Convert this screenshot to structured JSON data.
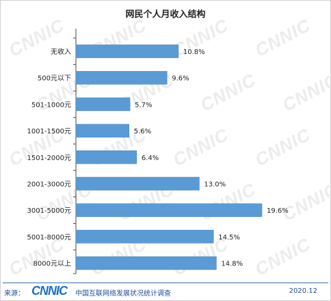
{
  "title": "网民个人月收入结构",
  "watermark": "CNNIC",
  "footer": {
    "source_label": "来源：",
    "brand": "CNNIC",
    "report_name": "中国互联网络发展状况统计调查",
    "date": "2020.12"
  },
  "colors": {
    "bar": "#5b9bd5",
    "axis": "#444444",
    "footer": "#1f4e9a",
    "brand": "#1d6fc4"
  },
  "chart_data": {
    "type": "bar",
    "orientation": "horizontal",
    "title": "网民个人月收入结构",
    "categories": [
      "无收入",
      "500元以下",
      "501-1000元",
      "1001-1500元",
      "1501-2000元",
      "2001-3000元",
      "3001-5000元",
      "5001-8000元",
      "8000元以上"
    ],
    "values": [
      10.8,
      9.6,
      5.7,
      5.6,
      6.4,
      13.0,
      19.6,
      14.5,
      14.8
    ],
    "labels": [
      "10.8%",
      "9.6%",
      "5.7%",
      "5.6%",
      "6.4%",
      "13.0%",
      "19.6%",
      "14.5%",
      "14.8%"
    ],
    "unit": "%",
    "grid": false,
    "legend": "none"
  }
}
